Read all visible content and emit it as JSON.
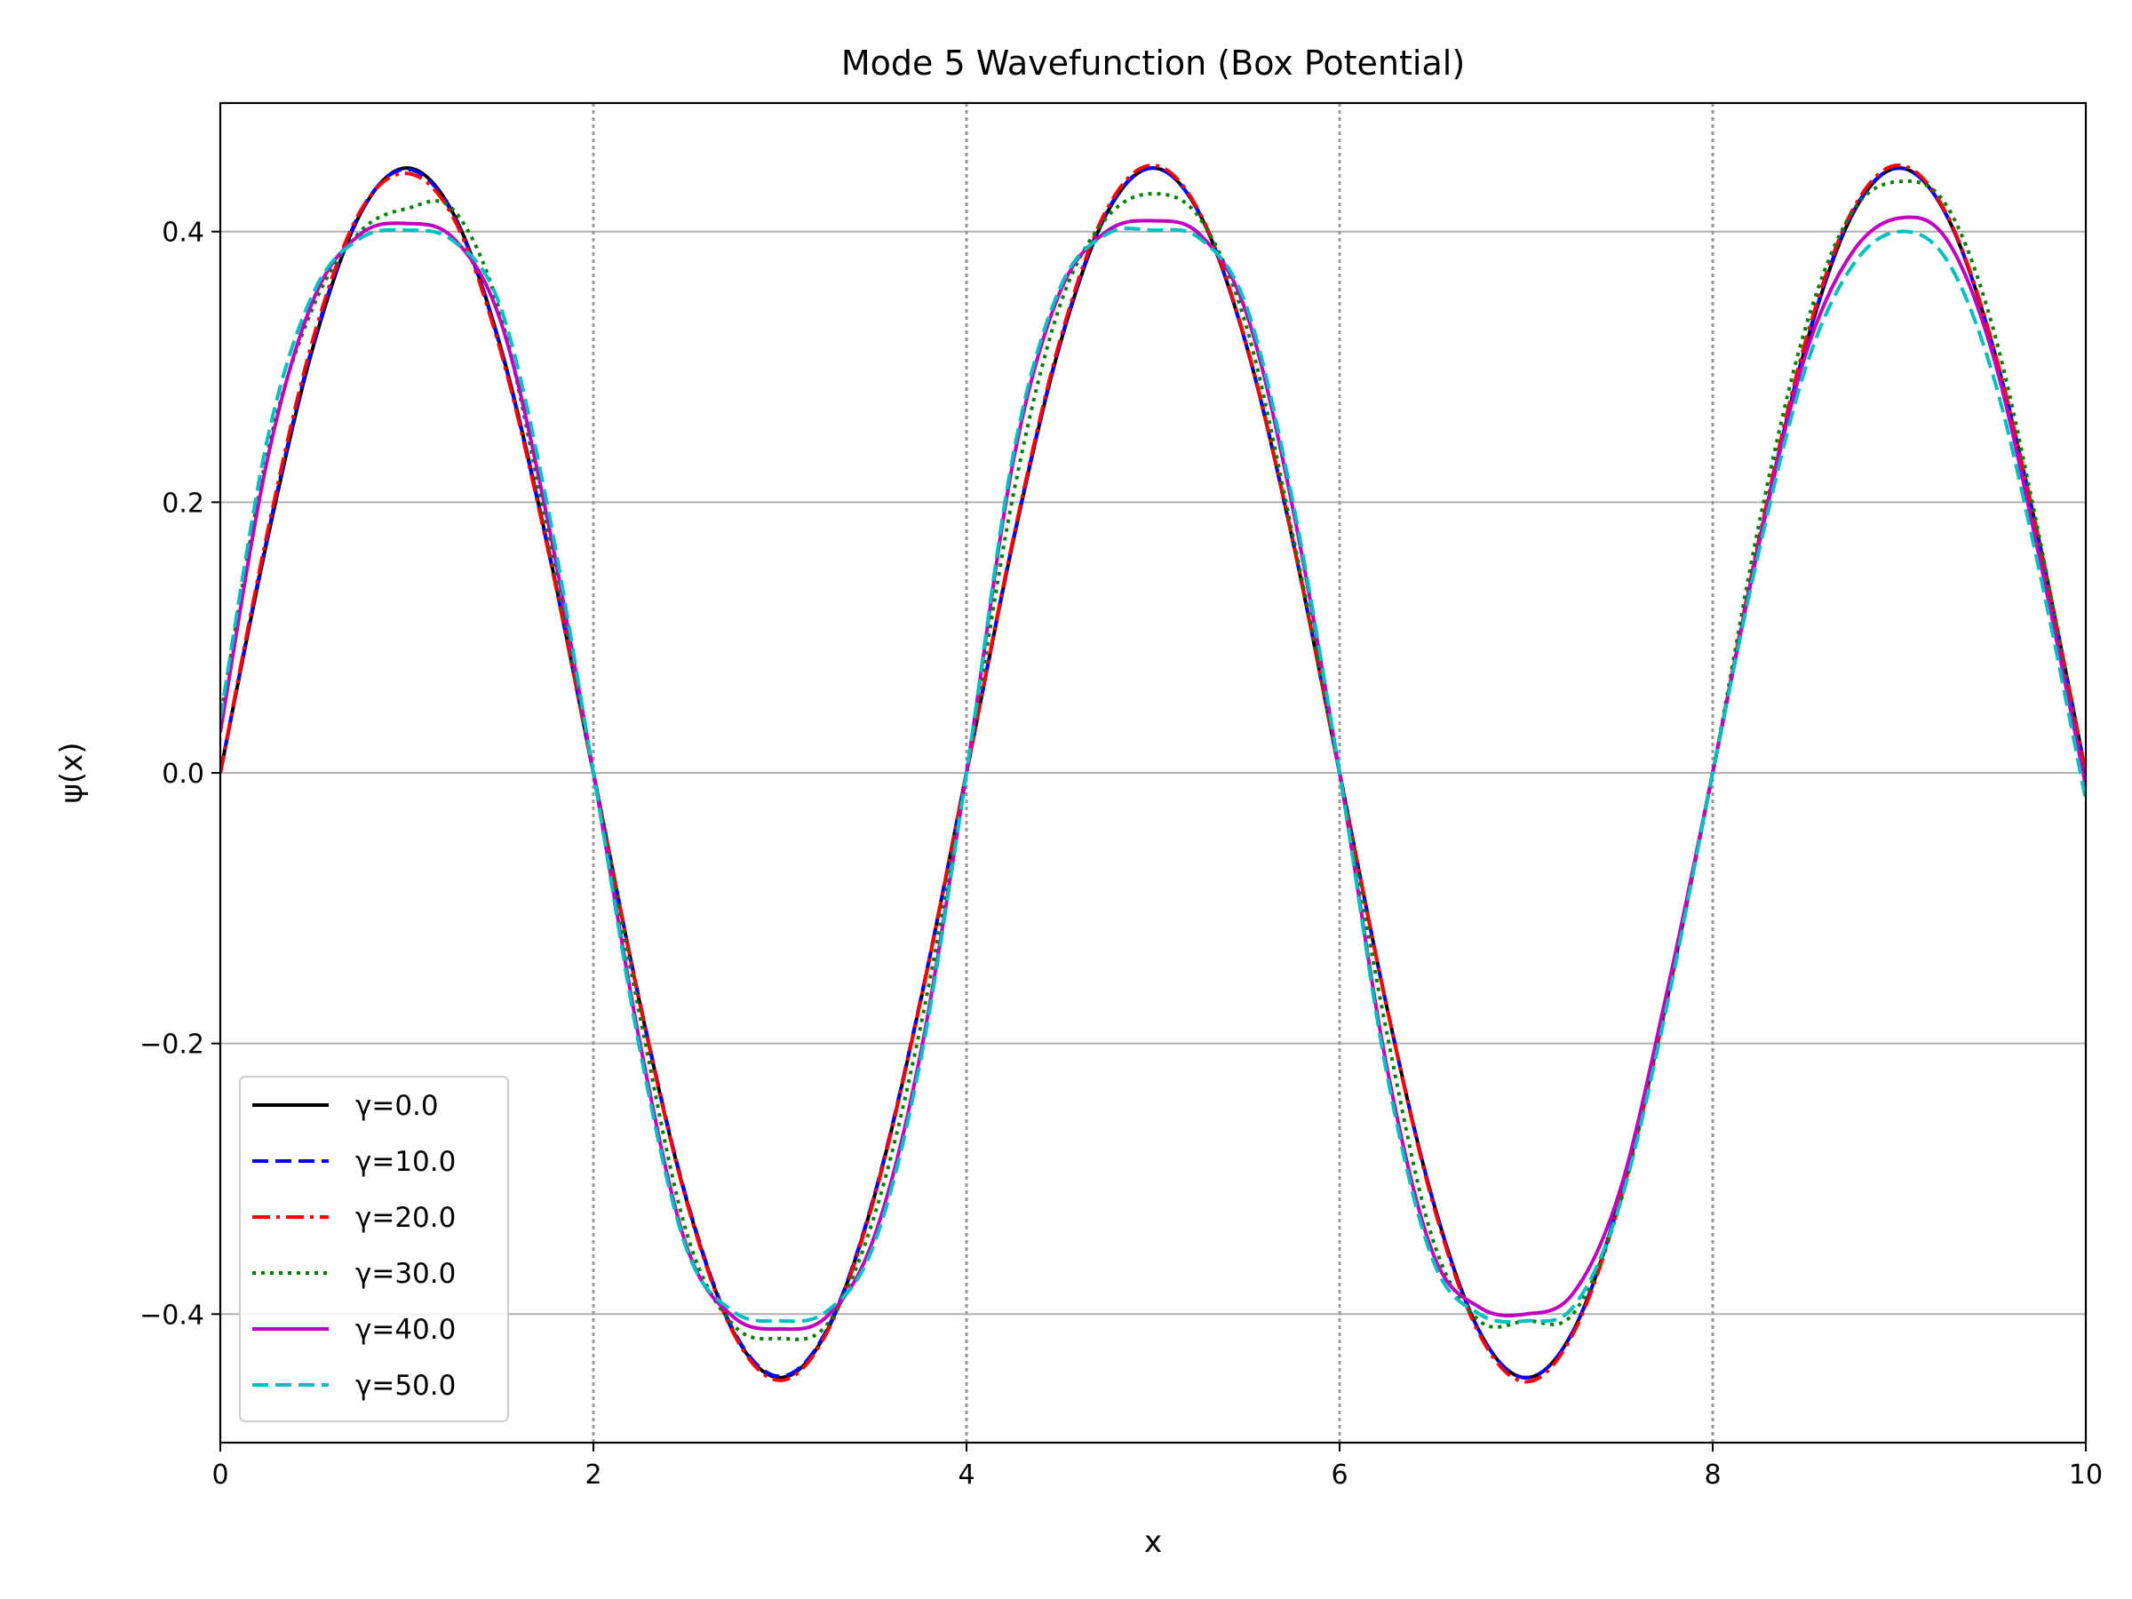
{
  "chart_data": {
    "type": "line",
    "title": "Mode 5 Wavefunction (Box Potential)",
    "xlabel": "x",
    "ylabel": "ψ(x)",
    "xlim": [
      0,
      10
    ],
    "ylim": [
      -0.495,
      0.495
    ],
    "xticks": [
      0,
      2,
      4,
      6,
      8,
      10
    ],
    "xtick_labels": [
      "0",
      "2",
      "4",
      "6",
      "8",
      "10"
    ],
    "yticks": [
      -0.4,
      -0.2,
      0.0,
      0.2,
      0.4
    ],
    "ytick_labels": [
      "−0.4",
      "−0.2",
      "0.0",
      "0.2",
      "0.4"
    ],
    "grid": "horizontal at y ticks",
    "vertical_reference_lines_x": [
      2,
      4,
      6,
      8
    ],
    "legend_position": "lower-left",
    "x": [
      0.0,
      0.25,
      0.5,
      0.75,
      1.0,
      1.25,
      1.5,
      1.75,
      2.0,
      2.25,
      2.5,
      2.75,
      3.0,
      3.25,
      3.5,
      3.75,
      4.0,
      4.25,
      4.5,
      4.75,
      5.0,
      5.25,
      5.5,
      5.75,
      6.0,
      6.25,
      6.5,
      6.75,
      7.0,
      7.25,
      7.5,
      7.75,
      8.0,
      8.25,
      8.5,
      8.75,
      9.0,
      9.25,
      9.5,
      9.75,
      10.0
    ],
    "series": [
      {
        "name": "γ=0.0",
        "color": "#000000",
        "dash": "solid",
        "values": [
          0.0,
          0.171,
          0.316,
          0.413,
          0.447,
          0.413,
          0.316,
          0.171,
          0.0,
          -0.171,
          -0.316,
          -0.413,
          -0.447,
          -0.413,
          -0.316,
          -0.171,
          0.0,
          0.171,
          0.316,
          0.413,
          0.447,
          0.413,
          0.316,
          0.171,
          0.0,
          -0.171,
          -0.316,
          -0.413,
          -0.447,
          -0.413,
          -0.316,
          -0.171,
          0.0,
          0.171,
          0.316,
          0.413,
          0.447,
          0.413,
          0.316,
          0.171,
          0.0
        ]
      },
      {
        "name": "γ=10.0",
        "color": "#0000ff",
        "dash": "dashed",
        "values": [
          0.0,
          0.173,
          0.318,
          0.414,
          0.446,
          0.412,
          0.315,
          0.17,
          0.0,
          -0.17,
          -0.315,
          -0.412,
          -0.446,
          -0.412,
          -0.315,
          -0.17,
          0.0,
          0.172,
          0.317,
          0.414,
          0.447,
          0.413,
          0.316,
          0.171,
          0.0,
          -0.171,
          -0.316,
          -0.413,
          -0.447,
          -0.413,
          -0.316,
          -0.17,
          0.0,
          0.171,
          0.317,
          0.414,
          0.447,
          0.413,
          0.316,
          0.171,
          0.0
        ]
      },
      {
        "name": "γ=20.0",
        "color": "#ff0000",
        "dash": "dashdot",
        "values": [
          0.0,
          0.176,
          0.322,
          0.415,
          0.443,
          0.41,
          0.313,
          0.169,
          0.0,
          -0.171,
          -0.317,
          -0.414,
          -0.449,
          -0.414,
          -0.317,
          -0.171,
          0.0,
          0.173,
          0.319,
          0.416,
          0.449,
          0.414,
          0.317,
          0.171,
          0.0,
          -0.171,
          -0.318,
          -0.415,
          -0.45,
          -0.415,
          -0.318,
          -0.172,
          0.0,
          0.174,
          0.32,
          0.416,
          0.449,
          0.414,
          0.317,
          0.171,
          0.0
        ]
      },
      {
        "name": "γ=30.0",
        "color": "#008000",
        "dash": "dotted",
        "values": [
          0.04,
          0.235,
          0.345,
          0.4,
          0.417,
          0.416,
          0.34,
          0.18,
          0.0,
          -0.18,
          -0.34,
          -0.408,
          -0.418,
          -0.408,
          -0.33,
          -0.19,
          0.0,
          0.205,
          0.345,
          0.41,
          0.428,
          0.41,
          0.33,
          0.175,
          0.0,
          -0.19,
          -0.345,
          -0.405,
          -0.405,
          -0.4,
          -0.32,
          -0.17,
          0.0,
          0.185,
          0.33,
          0.415,
          0.437,
          0.42,
          0.33,
          0.175,
          -0.01
        ]
      },
      {
        "name": "γ=40.0",
        "color": "#bf00bf",
        "dash": "solid",
        "values": [
          0.03,
          0.23,
          0.35,
          0.398,
          0.406,
          0.395,
          0.335,
          0.19,
          0.0,
          -0.2,
          -0.35,
          -0.402,
          -0.411,
          -0.402,
          -0.345,
          -0.21,
          0.0,
          0.23,
          0.355,
          0.4,
          0.408,
          0.398,
          0.34,
          0.195,
          0.0,
          -0.215,
          -0.355,
          -0.395,
          -0.4,
          -0.385,
          -0.31,
          -0.165,
          0.0,
          0.17,
          0.31,
          0.385,
          0.41,
          0.395,
          0.31,
          0.16,
          -0.01
        ]
      },
      {
        "name": "γ=50.0",
        "color": "#00bfbf",
        "dash": "dashed",
        "values": [
          0.04,
          0.245,
          0.355,
          0.395,
          0.401,
          0.393,
          0.345,
          0.2,
          0.0,
          -0.205,
          -0.352,
          -0.398,
          -0.405,
          -0.398,
          -0.35,
          -0.215,
          0.0,
          0.235,
          0.358,
          0.398,
          0.401,
          0.395,
          0.345,
          0.2,
          0.0,
          -0.22,
          -0.36,
          -0.4,
          -0.405,
          -0.395,
          -0.32,
          -0.175,
          0.0,
          0.165,
          0.3,
          0.375,
          0.4,
          0.38,
          0.295,
          0.15,
          -0.02
        ]
      }
    ]
  }
}
